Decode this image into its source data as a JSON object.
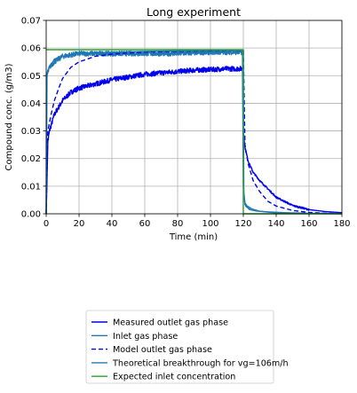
{
  "chart_data": {
    "type": "line",
    "title": "Long experiment",
    "xlabel": "Time (min)",
    "ylabel": "Compound conc. (g/m3)",
    "xlim": [
      0,
      180
    ],
    "ylim": [
      0,
      0.07
    ],
    "xticks": [
      0,
      20,
      40,
      60,
      80,
      100,
      120,
      140,
      160,
      180
    ],
    "xtick_labels": [
      "0",
      "20",
      "40",
      "60",
      "80",
      "100",
      "120",
      "140",
      "160",
      "180"
    ],
    "yticks": [
      0.0,
      0.01,
      0.02,
      0.03,
      0.04,
      0.05,
      0.06,
      0.07
    ],
    "ytick_labels": [
      "0.00",
      "0.01",
      "0.02",
      "0.03",
      "0.04",
      "0.05",
      "0.06",
      "0.07"
    ],
    "grid": true,
    "legend_position": "below the plot, centered",
    "series": [
      {
        "name": "Measured outlet gas phase",
        "color": "#0000ee",
        "style": "solid-noisy",
        "x": [
          0,
          1,
          2,
          5,
          10,
          15,
          20,
          30,
          40,
          50,
          60,
          70,
          80,
          90,
          100,
          110,
          119.5,
          120,
          121,
          123,
          126,
          130,
          135,
          140,
          150,
          160,
          170,
          180
        ],
        "y": [
          0.0,
          0.026,
          0.03,
          0.036,
          0.041,
          0.044,
          0.0455,
          0.047,
          0.0485,
          0.0495,
          0.0505,
          0.051,
          0.0515,
          0.052,
          0.0522,
          0.0525,
          0.0525,
          0.03,
          0.024,
          0.019,
          0.015,
          0.012,
          0.009,
          0.006,
          0.003,
          0.0015,
          0.0008,
          0.0004
        ]
      },
      {
        "name": "Inlet gas phase",
        "color": "#1f77b4",
        "style": "solid-noisy",
        "x": [
          0,
          0.5,
          2,
          5,
          10,
          15,
          20,
          30,
          40,
          60,
          80,
          100,
          119.5,
          120,
          121,
          122,
          124,
          128,
          135,
          145,
          160,
          180
        ],
        "y": [
          0.0,
          0.05,
          0.053,
          0.055,
          0.057,
          0.0575,
          0.058,
          0.058,
          0.058,
          0.058,
          0.058,
          0.0585,
          0.0585,
          0.01,
          0.0035,
          0.0025,
          0.0015,
          0.001,
          0.0007,
          0.0004,
          0.0002,
          0.0001
        ]
      },
      {
        "name": "Model outlet gas phase",
        "color": "#0000ee",
        "style": "dashed",
        "x": [
          0,
          1,
          3,
          5,
          8,
          10,
          15,
          20,
          25,
          30,
          40,
          50,
          60,
          80,
          100,
          120,
          121,
          123,
          126,
          130,
          135,
          140,
          150,
          160,
          170,
          180
        ],
        "y": [
          0.0,
          0.03,
          0.036,
          0.041,
          0.046,
          0.049,
          0.053,
          0.055,
          0.056,
          0.057,
          0.0578,
          0.0582,
          0.0585,
          0.0588,
          0.059,
          0.0591,
          0.025,
          0.018,
          0.012,
          0.008,
          0.0045,
          0.0028,
          0.0012,
          0.0005,
          0.0002,
          0.0001
        ]
      },
      {
        "name": "Theoretical breakthrough for vg=106m/h",
        "color": "#1f77b4",
        "style": "solid",
        "x": [
          0,
          0.3,
          1,
          3,
          5,
          10,
          20,
          40,
          60,
          80,
          100,
          120,
          120.3,
          121,
          122,
          125,
          130,
          140,
          150,
          180
        ],
        "y": [
          0.0,
          0.05,
          0.052,
          0.054,
          0.056,
          0.057,
          0.058,
          0.0585,
          0.0588,
          0.059,
          0.0591,
          0.0592,
          0.0055,
          0.004,
          0.003,
          0.0018,
          0.0009,
          0.0003,
          0.0001,
          0.0
        ]
      },
      {
        "name": "Expected inlet concentration",
        "color": "#2ca02c",
        "style": "solid",
        "x": [
          0,
          120,
          120,
          180
        ],
        "y": [
          0.0594,
          0.0594,
          0.0,
          0.0
        ]
      }
    ]
  }
}
